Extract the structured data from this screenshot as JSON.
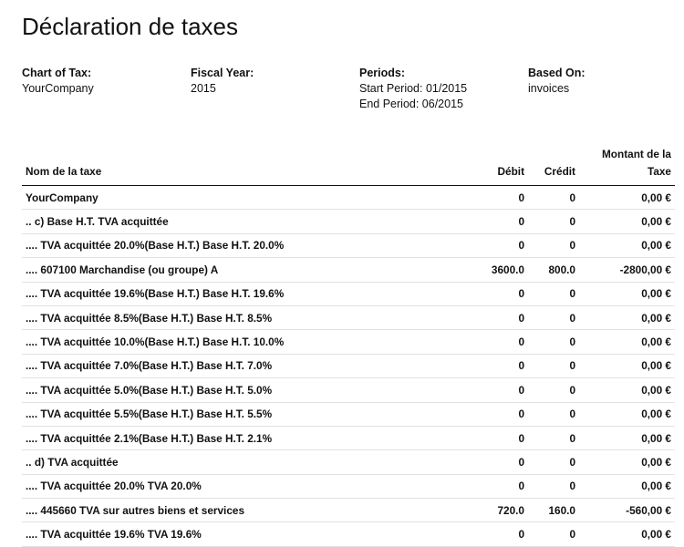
{
  "report": {
    "title": "Déclaration de taxes",
    "meta": [
      {
        "label": "Chart of Tax:",
        "values": [
          "YourCompany"
        ]
      },
      {
        "label": "Fiscal Year:",
        "values": [
          "2015"
        ]
      },
      {
        "label": "Periods:",
        "values": [
          "Start Period: 01/2015",
          "End Period: 06/2015"
        ]
      },
      {
        "label": "Based On:",
        "values": [
          "invoices"
        ]
      }
    ],
    "columns": {
      "name": "Nom de la taxe",
      "debit": "Débit",
      "credit": "Crédit",
      "amount_line1": "Montant de la",
      "amount_line2": "Taxe"
    },
    "rows": [
      {
        "name": "YourCompany",
        "debit": "0",
        "credit": "0",
        "amount": "0,00 €"
      },
      {
        "name": ".. c) Base H.T. TVA acquittée",
        "debit": "0",
        "credit": "0",
        "amount": "0,00 €"
      },
      {
        "name": ".... TVA acquittée 20.0%(Base H.T.) Base H.T. 20.0%",
        "debit": "0",
        "credit": "0",
        "amount": "0,00 €"
      },
      {
        "name": ".... 607100 Marchandise (ou groupe) A",
        "debit": "3600.0",
        "credit": "800.0",
        "amount": "-2800,00 €"
      },
      {
        "name": ".... TVA acquittée 19.6%(Base H.T.) Base H.T. 19.6%",
        "debit": "0",
        "credit": "0",
        "amount": "0,00 €"
      },
      {
        "name": ".... TVA acquittée 8.5%(Base H.T.) Base H.T. 8.5%",
        "debit": "0",
        "credit": "0",
        "amount": "0,00 €"
      },
      {
        "name": ".... TVA acquittée 10.0%(Base H.T.) Base H.T. 10.0%",
        "debit": "0",
        "credit": "0",
        "amount": "0,00 €"
      },
      {
        "name": ".... TVA acquittée 7.0%(Base H.T.) Base H.T. 7.0%",
        "debit": "0",
        "credit": "0",
        "amount": "0,00 €"
      },
      {
        "name": ".... TVA acquittée 5.0%(Base H.T.) Base H.T. 5.0%",
        "debit": "0",
        "credit": "0",
        "amount": "0,00 €"
      },
      {
        "name": ".... TVA acquittée 5.5%(Base H.T.) Base H.T. 5.5%",
        "debit": "0",
        "credit": "0",
        "amount": "0,00 €"
      },
      {
        "name": ".... TVA acquittée 2.1%(Base H.T.) Base H.T. 2.1%",
        "debit": "0",
        "credit": "0",
        "amount": "0,00 €"
      },
      {
        "name": ".. d) TVA acquittée",
        "debit": "0",
        "credit": "0",
        "amount": "0,00 €"
      },
      {
        "name": ".... TVA acquittée 20.0% TVA 20.0%",
        "debit": "0",
        "credit": "0",
        "amount": "0,00 €"
      },
      {
        "name": ".... 445660 TVA sur autres biens et services",
        "debit": "720.0",
        "credit": "160.0",
        "amount": "-560,00 €"
      },
      {
        "name": ".... TVA acquittée 19.6% TVA 19.6%",
        "debit": "0",
        "credit": "0",
        "amount": "0,00 €"
      }
    ]
  }
}
